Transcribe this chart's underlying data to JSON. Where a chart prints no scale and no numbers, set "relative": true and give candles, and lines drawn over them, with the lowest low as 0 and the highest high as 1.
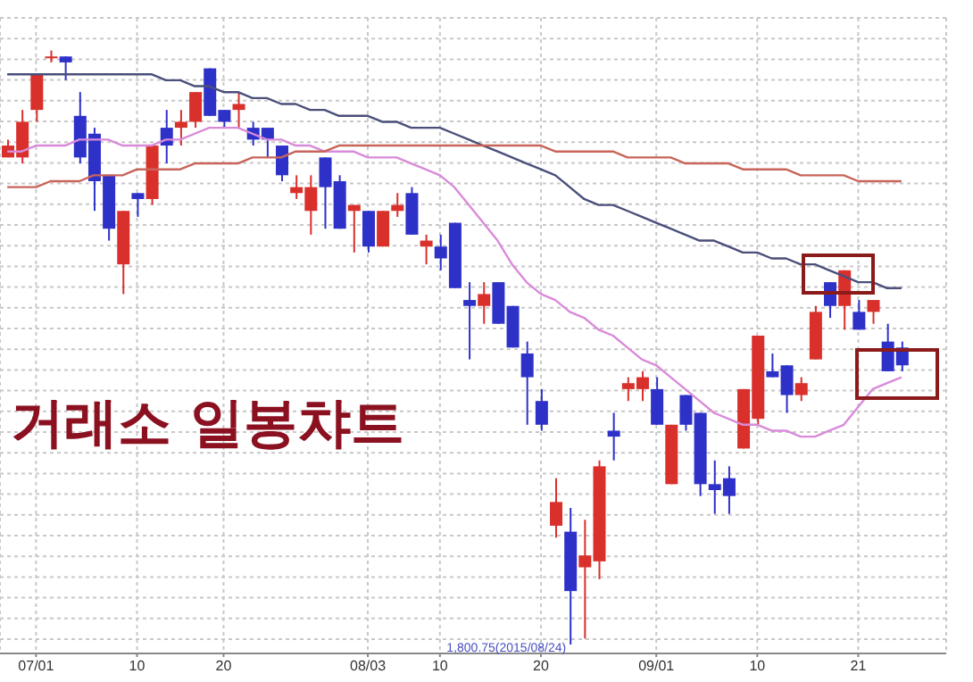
{
  "chart_data": {
    "type": "candlestick",
    "title": "거래소 일봉챠트",
    "relative": true,
    "grid": true,
    "categories": [
      null,
      null,
      "07/01",
      null,
      null,
      null,
      null,
      null,
      null,
      "10",
      null,
      null,
      null,
      null,
      null,
      "20",
      null,
      null,
      null,
      null,
      null,
      null,
      null,
      null,
      null,
      "08/03",
      null,
      null,
      null,
      null,
      "10",
      null,
      null,
      null,
      null,
      null,
      null,
      "20",
      null,
      null,
      null,
      null,
      null,
      null,
      null,
      "09/01",
      null,
      null,
      null,
      null,
      null,
      null,
      "10",
      null,
      null,
      null,
      null,
      null,
      null,
      "21",
      null,
      null,
      null
    ],
    "ohlc": [
      [
        0.82,
        0.85,
        0.82,
        0.84
      ],
      [
        0.82,
        0.9,
        0.81,
        0.88
      ],
      [
        0.9,
        0.96,
        0.88,
        0.96
      ],
      [
        0.99,
        1,
        0.98,
        0.99
      ],
      [
        0.99,
        0.99,
        0.95,
        0.98
      ],
      [
        0.89,
        0.93,
        0.81,
        0.82
      ],
      [
        0.86,
        0.87,
        0.73,
        0.78
      ],
      [
        0.79,
        0.79,
        0.68,
        0.7
      ],
      [
        0.64,
        0.73,
        0.59,
        0.73
      ],
      [
        0.76,
        0.76,
        0.72,
        0.75
      ],
      [
        0.75,
        0.84,
        0.74,
        0.84
      ],
      [
        0.87,
        0.9,
        0.81,
        0.84
      ],
      [
        0.87,
        0.9,
        0.84,
        0.88
      ],
      [
        0.88,
        0.93,
        0.87,
        0.93
      ],
      [
        0.97,
        0.97,
        0.89,
        0.89
      ],
      [
        0.9,
        0.9,
        0.87,
        0.88
      ],
      [
        0.9,
        0.93,
        0.87,
        0.91
      ],
      [
        0.87,
        0.88,
        0.84,
        0.85
      ],
      [
        0.87,
        0.87,
        0.82,
        0.85
      ],
      [
        0.84,
        0.84,
        0.78,
        0.79
      ],
      [
        0.76,
        0.79,
        0.75,
        0.77
      ],
      [
        0.73,
        0.79,
        0.69,
        0.77
      ],
      [
        0.82,
        0.82,
        0.7,
        0.77
      ],
      [
        0.78,
        0.79,
        0.7,
        0.7
      ],
      [
        0.73,
        0.74,
        0.66,
        0.74
      ],
      [
        0.73,
        0.73,
        0.66,
        0.67
      ],
      [
        0.67,
        0.73,
        0.67,
        0.73
      ],
      [
        0.73,
        0.76,
        0.72,
        0.74
      ],
      [
        0.76,
        0.77,
        0.69,
        0.69
      ],
      [
        0.67,
        0.69,
        0.64,
        0.68
      ],
      [
        0.67,
        0.69,
        0.63,
        0.65
      ],
      [
        0.71,
        0.71,
        0.6,
        0.6
      ],
      [
        0.58,
        0.61,
        0.48,
        0.57
      ],
      [
        0.57,
        0.61,
        0.54,
        0.59
      ],
      [
        0.61,
        0.61,
        0.54,
        0.54
      ],
      [
        0.57,
        0.57,
        0.5,
        0.5
      ],
      [
        0.49,
        0.51,
        0.37,
        0.45
      ],
      [
        0.41,
        0.43,
        0.36,
        0.37
      ],
      [
        0.2,
        0.28,
        0.18,
        0.24
      ],
      [
        0.19,
        0.23,
        0,
        0.09
      ],
      [
        0.13,
        0.21,
        0.01,
        0.15
      ],
      [
        0.14,
        0.31,
        0.11,
        0.3
      ],
      [
        0.36,
        0.39,
        0.31,
        0.35
      ],
      [
        0.43,
        0.45,
        0.41,
        0.44
      ],
      [
        0.43,
        0.46,
        0.41,
        0.45
      ],
      [
        0.43,
        0.45,
        0.37,
        0.37
      ],
      [
        0.27,
        0.37,
        0.27,
        0.37
      ],
      [
        0.42,
        0.42,
        0.36,
        0.37
      ],
      [
        0.39,
        0.39,
        0.25,
        0.27
      ],
      [
        0.27,
        0.31,
        0.22,
        0.26
      ],
      [
        0.28,
        0.3,
        0.22,
        0.25
      ],
      [
        0.33,
        0.43,
        0.33,
        0.43
      ],
      [
        0.38,
        0.52,
        0.37,
        0.52
      ],
      [
        0.46,
        0.49,
        0.45,
        0.45
      ],
      [
        0.47,
        0.47,
        0.39,
        0.42
      ],
      [
        0.42,
        0.45,
        0.41,
        0.44
      ],
      [
        0.48,
        0.57,
        0.48,
        0.56
      ],
      [
        0.61,
        0.61,
        0.55,
        0.57
      ],
      [
        0.57,
        0.63,
        0.53,
        0.63
      ],
      [
        0.56,
        0.58,
        0.53,
        0.53
      ],
      [
        0.56,
        0.58,
        0.54,
        0.58
      ],
      [
        0.51,
        0.54,
        0.46,
        0.46
      ],
      [
        0.5,
        0.51,
        0.46,
        0.47
      ]
    ],
    "colors": [
      "#d9302b",
      "#d9302b",
      "#d9302b",
      "#d9302b",
      "#2e31c8",
      "#2e31c8",
      "#2e31c8",
      "#2e31c8",
      "#d9302b",
      "#2e31c8",
      "#d9302b",
      "#2e31c8",
      "#d9302b",
      "#d9302b",
      "#2e31c8",
      "#2e31c8",
      "#d9302b",
      "#2e31c8",
      "#2e31c8",
      "#2e31c8",
      "#d9302b",
      "#d9302b",
      "#2e31c8",
      "#2e31c8",
      "#d9302b",
      "#2e31c8",
      "#d9302b",
      "#d9302b",
      "#2e31c8",
      "#d9302b",
      "#2e31c8",
      "#2e31c8",
      "#2e31c8",
      "#d9302b",
      "#2e31c8",
      "#2e31c8",
      "#2e31c8",
      "#2e31c8",
      "#d9302b",
      "#2e31c8",
      "#d9302b",
      "#d9302b",
      "#2e31c8",
      "#d9302b",
      "#d9302b",
      "#2e31c8",
      "#d9302b",
      "#2e31c8",
      "#2e31c8",
      "#2e31c8",
      "#2e31c8",
      "#d9302b",
      "#d9302b",
      "#2e31c8",
      "#2e31c8",
      "#d9302b",
      "#d9302b",
      "#2e31c8",
      "#d9302b",
      "#2e31c8",
      "#d9302b",
      "#2e31c8",
      "#2e31c8"
    ],
    "series": [
      {
        "type": "line",
        "color": "#4a4f7a",
        "values": [
          0.96,
          0.96,
          0.96,
          0.96,
          0.96,
          0.96,
          0.96,
          0.96,
          0.96,
          0.96,
          0.96,
          0.95,
          0.95,
          0.94,
          0.94,
          0.93,
          0.93,
          0.92,
          0.92,
          0.91,
          0.91,
          0.9,
          0.9,
          0.89,
          0.89,
          0.89,
          0.88,
          0.88,
          0.87,
          0.87,
          0.87,
          0.86,
          0.85,
          0.84,
          0.83,
          0.82,
          0.81,
          0.8,
          0.79,
          0.77,
          0.75,
          0.74,
          0.74,
          0.73,
          0.72,
          0.71,
          0.7,
          0.69,
          0.68,
          0.68,
          0.67,
          0.66,
          0.66,
          0.65,
          0.65,
          0.64,
          0.64,
          0.63,
          0.62,
          0.61,
          0.61,
          0.6,
          0.6
        ]
      },
      {
        "type": "line",
        "color": "#d98ad9",
        "values": [
          0.83,
          0.83,
          0.84,
          0.84,
          0.84,
          0.85,
          0.85,
          0.85,
          0.84,
          0.84,
          0.84,
          0.85,
          0.85,
          0.86,
          0.87,
          0.87,
          0.87,
          0.86,
          0.85,
          0.85,
          0.84,
          0.84,
          0.83,
          0.83,
          0.83,
          0.82,
          0.82,
          0.82,
          0.81,
          0.8,
          0.79,
          0.77,
          0.74,
          0.71,
          0.68,
          0.64,
          0.61,
          0.59,
          0.58,
          0.56,
          0.55,
          0.53,
          0.52,
          0.5,
          0.48,
          0.47,
          0.45,
          0.43,
          0.41,
          0.39,
          0.38,
          0.37,
          0.37,
          0.36,
          0.36,
          0.35,
          0.35,
          0.36,
          0.37,
          0.4,
          0.43,
          0.44,
          0.45
        ]
      },
      {
        "type": "line",
        "color": "#c8645a",
        "values": [
          0.77,
          0.77,
          0.77,
          0.78,
          0.78,
          0.78,
          0.79,
          0.79,
          0.79,
          0.8,
          0.8,
          0.8,
          0.8,
          0.81,
          0.81,
          0.81,
          0.81,
          0.82,
          0.82,
          0.82,
          0.83,
          0.83,
          0.83,
          0.84,
          0.84,
          0.84,
          0.84,
          0.84,
          0.84,
          0.84,
          0.84,
          0.84,
          0.84,
          0.84,
          0.84,
          0.84,
          0.84,
          0.84,
          0.83,
          0.83,
          0.83,
          0.83,
          0.83,
          0.82,
          0.82,
          0.82,
          0.82,
          0.81,
          0.81,
          0.81,
          0.81,
          0.8,
          0.8,
          0.8,
          0.8,
          0.79,
          0.79,
          0.79,
          0.79,
          0.78,
          0.78,
          0.78,
          0.78
        ]
      }
    ],
    "annotations": [
      "1,800.75(2015/08/24)"
    ]
  }
}
